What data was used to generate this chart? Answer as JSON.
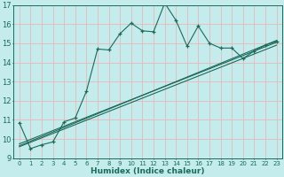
{
  "title": "",
  "xlabel": "Humidex (Indice chaleur)",
  "xlim": [
    -0.5,
    23.5
  ],
  "ylim": [
    9,
    17
  ],
  "yticks": [
    9,
    10,
    11,
    12,
    13,
    14,
    15,
    16,
    17
  ],
  "xticks": [
    0,
    1,
    2,
    3,
    4,
    5,
    6,
    7,
    8,
    9,
    10,
    11,
    12,
    13,
    14,
    15,
    16,
    17,
    18,
    19,
    20,
    21,
    22,
    23
  ],
  "bg_color": "#c5ecec",
  "grid_color": "#e8b8b8",
  "line_color": "#1a6b5a",
  "line1_x": [
    0,
    1,
    2,
    3,
    4,
    5,
    6,
    7,
    8,
    9,
    10,
    11,
    12,
    13,
    14,
    15,
    16,
    17,
    18,
    19,
    20,
    21,
    22,
    23
  ],
  "line1_y": [
    10.85,
    9.5,
    9.7,
    9.85,
    10.9,
    11.1,
    12.5,
    14.7,
    14.65,
    15.5,
    16.05,
    15.65,
    15.6,
    17.1,
    16.2,
    14.85,
    15.9,
    15.0,
    14.75,
    14.75,
    14.2,
    14.6,
    14.9,
    15.1
  ],
  "line2_x": [
    0,
    23
  ],
  "line2_y": [
    9.75,
    15.05
  ],
  "line3_x": [
    0,
    23
  ],
  "line3_y": [
    9.6,
    14.9
  ],
  "line4_x": [
    0,
    23
  ],
  "line4_y": [
    9.65,
    15.15
  ]
}
